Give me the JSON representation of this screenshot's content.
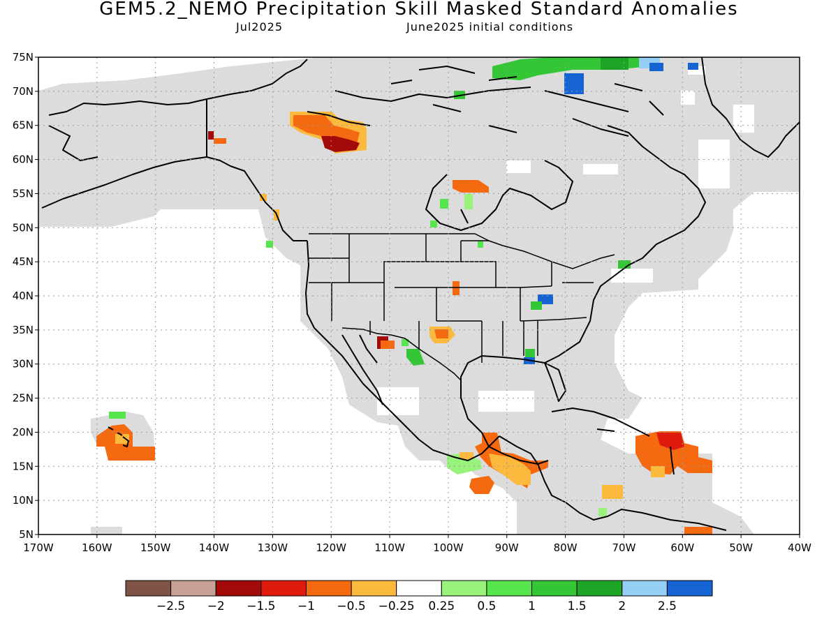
{
  "title": "GEM5.2_NEMO Precipitation Skill Masked Standard Anomalies",
  "valid_month": "Jul2025",
  "initial_conditions": "June2025 initial conditions",
  "axes": {
    "lat_labels": [
      "75N",
      "70N",
      "65N",
      "60N",
      "55N",
      "50N",
      "45N",
      "40N",
      "35N",
      "30N",
      "25N",
      "20N",
      "15N",
      "10N",
      "5N"
    ],
    "lon_labels": [
      "170W",
      "160W",
      "150W",
      "140W",
      "130W",
      "120W",
      "110W",
      "100W",
      "90W",
      "80W",
      "70W",
      "60W",
      "50W",
      "40W"
    ],
    "lon_range": [
      -170,
      -40
    ],
    "lat_range": [
      5,
      75
    ]
  },
  "colorbar": {
    "colors": [
      "#7f5345",
      "#c9a096",
      "#a50a0a",
      "#df1b0d",
      "#f56a10",
      "#fbb93e",
      "#ffffff",
      "#98f27c",
      "#57e54d",
      "#34c636",
      "#1fa525",
      "#96cff6",
      "#1664d3"
    ],
    "labels": [
      "−2.5",
      "−2",
      "−1.5",
      "−1",
      "−0.5",
      "−0.25",
      "0.25",
      "0.5",
      "1",
      "1.5",
      "2",
      "2.5"
    ]
  },
  "colors": {
    "skill_mask": "#dcdcdc",
    "land_outline": "#000000",
    "ocean": "#ffffff"
  }
}
